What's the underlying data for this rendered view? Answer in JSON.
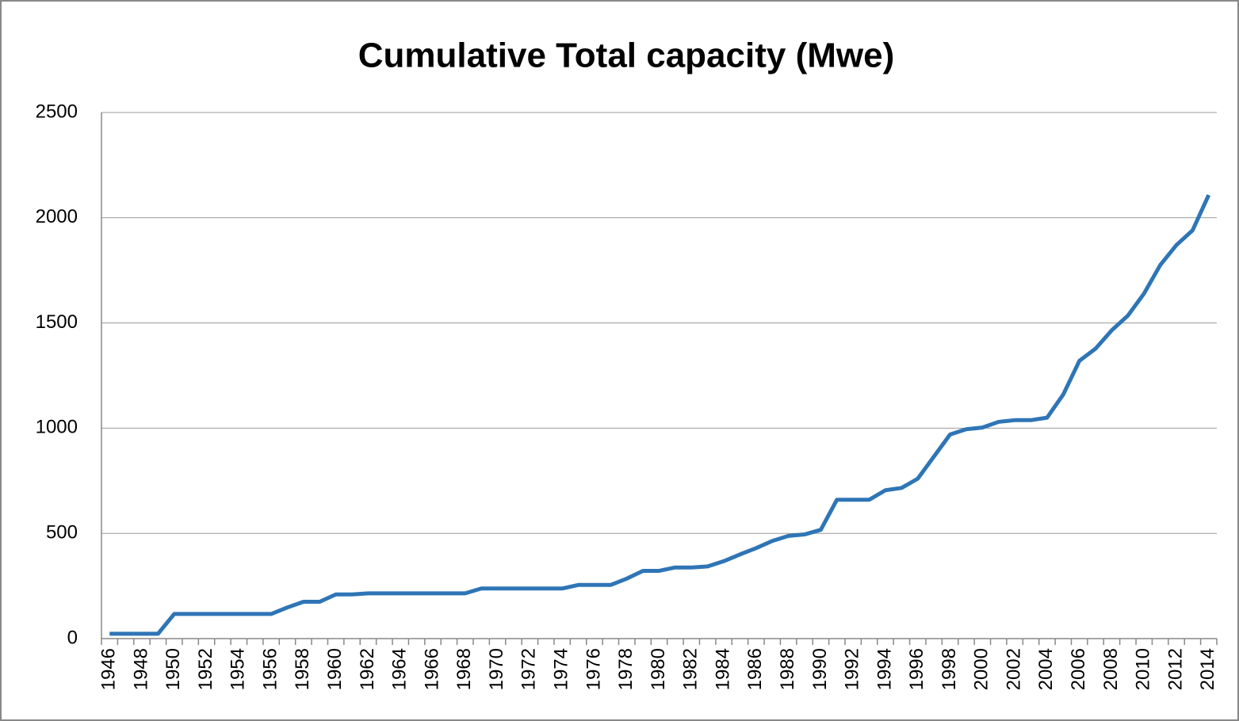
{
  "chart_data": {
    "type": "line",
    "title": "Cumulative Total capacity (Mwe)",
    "categories": [
      "1946",
      null,
      "1948",
      null,
      "1950",
      null,
      "1952",
      null,
      "1954",
      null,
      "1956",
      null,
      "1958",
      null,
      "1960",
      null,
      "1962",
      null,
      "1964",
      null,
      "1966",
      null,
      "1968",
      null,
      "1970",
      null,
      "1972",
      null,
      "1974",
      null,
      "1976",
      null,
      "1978",
      null,
      "1980",
      null,
      "1982",
      null,
      "1984",
      null,
      "1986",
      null,
      "1988",
      null,
      "1990",
      null,
      "1992",
      null,
      "1994",
      null,
      "1996",
      null,
      "1998",
      null,
      "2000",
      null,
      "2002",
      null,
      "2004",
      null,
      "2006",
      null,
      "2008",
      null,
      "2010",
      null,
      "2012",
      null,
      "2014"
    ],
    "series": [
      {
        "name": "Cumulative Total capacity (Mwe)",
        "color": "#2e75b6",
        "values": [
          23,
          23,
          23,
          23,
          117,
          117,
          117,
          117,
          117,
          117,
          117,
          148,
          175,
          175,
          210,
          210,
          215,
          215,
          215,
          215,
          215,
          215,
          215,
          238,
          238,
          238,
          238,
          238,
          238,
          255,
          255,
          255,
          285,
          322,
          322,
          338,
          338,
          343,
          368,
          400,
          430,
          464,
          488,
          495,
          517,
          660,
          660,
          660,
          705,
          716,
          760,
          865,
          970,
          995,
          1003,
          1030,
          1038,
          1038,
          1050,
          1160,
          1320,
          1378,
          1465,
          1535,
          1640,
          1775,
          1870,
          1940,
          2108
        ]
      }
    ],
    "ylim": [
      0,
      2500
    ],
    "yticks": [
      0,
      500,
      1000,
      1500,
      2000,
      2500
    ],
    "grid": true
  }
}
